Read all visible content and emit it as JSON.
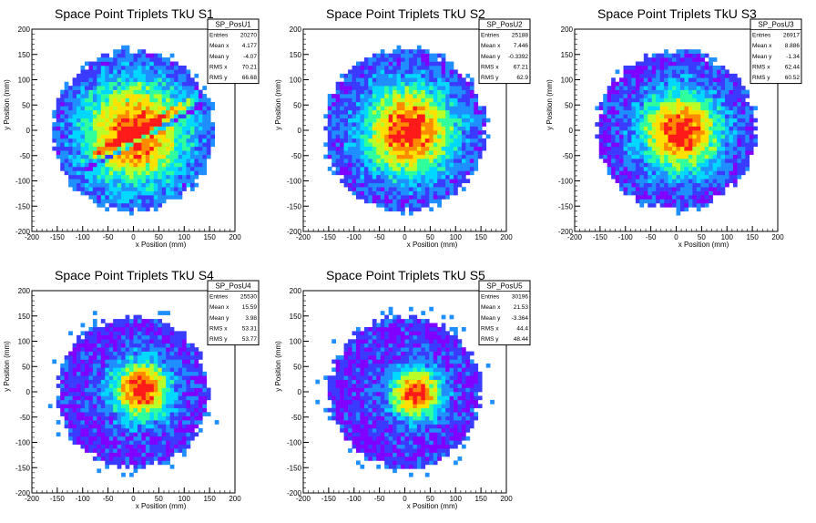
{
  "chart_data": [
    {
      "type": "heatmap",
      "name": "SP_PosU1",
      "title": "Space Point Triplets TkU S1",
      "xlabel": "x Position (mm)",
      "ylabel": "y Position (mm)",
      "xlim": [
        -200,
        200
      ],
      "ylim": [
        -200,
        200
      ],
      "xticks": [
        -200,
        -150,
        -100,
        -50,
        0,
        50,
        100,
        150,
        200
      ],
      "yticks": [
        -200,
        -150,
        -100,
        -50,
        0,
        50,
        100,
        150,
        200
      ],
      "stats": [
        {
          "label": "Entries",
          "value": "20270"
        },
        {
          "label": "Mean x",
          "value": "4.177"
        },
        {
          "label": "Mean y",
          "value": "-4.07"
        },
        {
          "label": "RMS x",
          "value": "70.21"
        },
        {
          "label": "RMS y",
          "value": "66.68"
        }
      ],
      "distribution": {
        "center_x": 4.177,
        "center_y": -4.07,
        "radius": 160,
        "peak_spread": 70,
        "stripe": true
      }
    },
    {
      "type": "heatmap",
      "name": "SP_PosU2",
      "title": "Space Point Triplets TkU S2",
      "xlabel": "x Position (mm)",
      "ylabel": "y Position (mm)",
      "xlim": [
        -200,
        200
      ],
      "ylim": [
        -200,
        200
      ],
      "xticks": [
        -200,
        -150,
        -100,
        -50,
        0,
        50,
        100,
        150,
        200
      ],
      "yticks": [
        -200,
        -150,
        -100,
        -50,
        0,
        50,
        100,
        150,
        200
      ],
      "stats": [
        {
          "label": "Entries",
          "value": "25188"
        },
        {
          "label": "Mean x",
          "value": "7.446"
        },
        {
          "label": "Mean y",
          "value": "-0.3392"
        },
        {
          "label": "RMS x",
          "value": "67.21"
        },
        {
          "label": "RMS y",
          "value": "62.9"
        }
      ],
      "distribution": {
        "center_x": 7.446,
        "center_y": -0.3392,
        "radius": 160,
        "peak_spread": 62,
        "stripe": false
      }
    },
    {
      "type": "heatmap",
      "name": "SP_PosU3",
      "title": "Space Point Triplets TkU S3",
      "xlabel": "x Position (mm)",
      "ylabel": "y Position (mm)",
      "xlim": [
        -200,
        200
      ],
      "ylim": [
        -200,
        200
      ],
      "xticks": [
        -200,
        -150,
        -100,
        -50,
        0,
        50,
        100,
        150,
        200
      ],
      "yticks": [
        -200,
        -150,
        -100,
        -50,
        0,
        50,
        100,
        150,
        200
      ],
      "stats": [
        {
          "label": "Entries",
          "value": "26917"
        },
        {
          "label": "Mean x",
          "value": "8.886"
        },
        {
          "label": "Mean y",
          "value": "-1.34"
        },
        {
          "label": "RMS x",
          "value": "62.44"
        },
        {
          "label": "RMS y",
          "value": "60.52"
        }
      ],
      "distribution": {
        "center_x": 8.886,
        "center_y": -1.34,
        "radius": 158,
        "peak_spread": 55,
        "stripe": false
      }
    },
    {
      "type": "heatmap",
      "name": "SP_PosU4",
      "title": "Space Point Triplets TkU S4",
      "xlabel": "x Position (mm)",
      "ylabel": "y Position (mm)",
      "xlim": [
        -200,
        200
      ],
      "ylim": [
        -200,
        200
      ],
      "xticks": [
        -200,
        -150,
        -100,
        -50,
        0,
        50,
        100,
        150,
        200
      ],
      "yticks": [
        -200,
        -150,
        -100,
        -50,
        0,
        50,
        100,
        150,
        200
      ],
      "stats": [
        {
          "label": "Entries",
          "value": "25530"
        },
        {
          "label": "Mean x",
          "value": "15.59"
        },
        {
          "label": "Mean y",
          "value": "3.98"
        },
        {
          "label": "RMS x",
          "value": "53.31"
        },
        {
          "label": "RMS y",
          "value": "53.77"
        }
      ],
      "distribution": {
        "center_x": 15.59,
        "center_y": 3.98,
        "radius": 150,
        "peak_spread": 40,
        "stripe": false
      }
    },
    {
      "type": "heatmap",
      "name": "SP_PosU5",
      "title": "Space Point Triplets TkU S5",
      "xlabel": "x Position (mm)",
      "ylabel": "y Position (mm)",
      "xlim": [
        -200,
        200
      ],
      "ylim": [
        -200,
        200
      ],
      "xticks": [
        -200,
        -150,
        -100,
        -50,
        0,
        50,
        100,
        150,
        200
      ],
      "yticks": [
        -200,
        -150,
        -100,
        -50,
        0,
        50,
        100,
        150,
        200
      ],
      "stats": [
        {
          "label": "Entries",
          "value": "30196"
        },
        {
          "label": "Mean x",
          "value": "21.53"
        },
        {
          "label": "Mean y",
          "value": "-3.364"
        },
        {
          "label": "RMS x",
          "value": "44.4"
        },
        {
          "label": "RMS y",
          "value": "48.44"
        }
      ],
      "distribution": {
        "center_x": 21.53,
        "center_y": -3.364,
        "radius": 150,
        "peak_spread": 34,
        "stripe": false
      }
    }
  ],
  "colors": {
    "background": "#ffffff",
    "palette": [
      "#7f00ff",
      "#3b3bff",
      "#1f8fff",
      "#00d8ff",
      "#2fff9c",
      "#b8ff2a",
      "#ffe000",
      "#ff8a00",
      "#ff1a1a"
    ]
  }
}
